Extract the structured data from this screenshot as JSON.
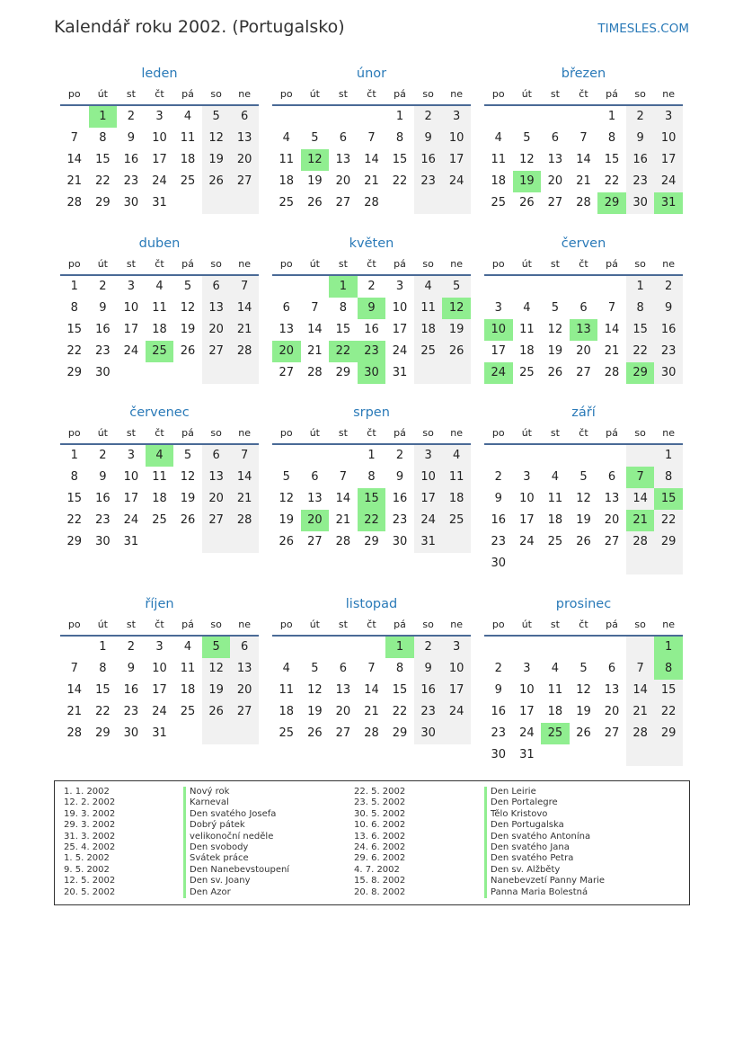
{
  "header": {
    "title": "Kalendář roku 2002. (Portugalsko)",
    "brand": "TIMESLES.COM"
  },
  "year": 2002,
  "weekdays": [
    "po",
    "út",
    "st",
    "čt",
    "pá",
    "so",
    "ne"
  ],
  "colors": {
    "accent": "#2a7ab8",
    "holiday": "#90ee90",
    "weekend": "#f1f1f1"
  },
  "months": [
    {
      "name": "leden",
      "holidays": [
        1
      ]
    },
    {
      "name": "únor",
      "holidays": [
        12
      ]
    },
    {
      "name": "březen",
      "holidays": [
        19,
        29,
        31
      ]
    },
    {
      "name": "duben",
      "holidays": [
        25
      ]
    },
    {
      "name": "květen",
      "holidays": [
        1,
        9,
        12,
        20,
        22,
        23,
        30
      ]
    },
    {
      "name": "červen",
      "holidays": [
        10,
        13,
        24,
        29
      ]
    },
    {
      "name": "červenec",
      "holidays": [
        4
      ]
    },
    {
      "name": "srpen",
      "holidays": [
        15,
        20,
        22
      ]
    },
    {
      "name": "září",
      "holidays": [
        7,
        15,
        21
      ]
    },
    {
      "name": "říjen",
      "holidays": [
        5
      ]
    },
    {
      "name": "listopad",
      "holidays": [
        1
      ]
    },
    {
      "name": "prosinec",
      "holidays": [
        1,
        8,
        25
      ]
    }
  ],
  "holiday_list": [
    {
      "date": "1. 1. 2002",
      "name": "Nový rok"
    },
    {
      "date": "12. 2. 2002",
      "name": "Karneval"
    },
    {
      "date": "19. 3. 2002",
      "name": "Den svatého Josefa"
    },
    {
      "date": "29. 3. 2002",
      "name": "Dobrý pátek"
    },
    {
      "date": "31. 3. 2002",
      "name": "velikonoční neděle"
    },
    {
      "date": "25. 4. 2002",
      "name": "Den svobody"
    },
    {
      "date": "1. 5. 2002",
      "name": "Svátek práce"
    },
    {
      "date": "9. 5. 2002",
      "name": "Den Nanebevstoupení"
    },
    {
      "date": "12. 5. 2002",
      "name": "Den sv. Joany"
    },
    {
      "date": "20. 5. 2002",
      "name": "Den Azor"
    },
    {
      "date": "22. 5. 2002",
      "name": "Den Leirie"
    },
    {
      "date": "23. 5. 2002",
      "name": "Den Portalegre"
    },
    {
      "date": "30. 5. 2002",
      "name": "Tělo Kristovo"
    },
    {
      "date": "10. 6. 2002",
      "name": "Den Portugalska"
    },
    {
      "date": "13. 6. 2002",
      "name": "Den svatého Antonína"
    },
    {
      "date": "24. 6. 2002",
      "name": "Den svatého Jana"
    },
    {
      "date": "29. 6. 2002",
      "name": "Den svatého Petra"
    },
    {
      "date": "4. 7. 2002",
      "name": "Den sv. Alžběty"
    },
    {
      "date": "15. 8. 2002",
      "name": "Nanebevzetí Panny Marie"
    },
    {
      "date": "20. 8. 2002",
      "name": "Panna Maria Bolestná"
    }
  ]
}
